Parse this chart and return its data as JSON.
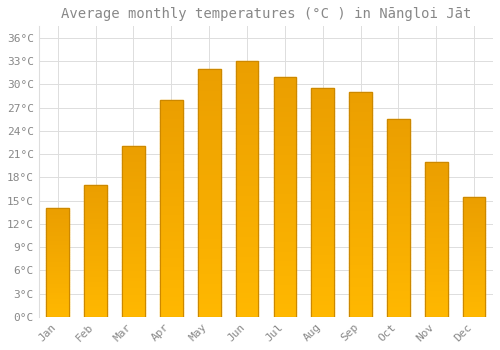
{
  "title": "Average monthly temperatures (°C ) in Nāngloi Jāt",
  "months": [
    "Jan",
    "Feb",
    "Mar",
    "Apr",
    "May",
    "Jun",
    "Jul",
    "Aug",
    "Sep",
    "Oct",
    "Nov",
    "Dec"
  ],
  "values": [
    14,
    17,
    22,
    28,
    32,
    33,
    31,
    29.5,
    29,
    25.5,
    20,
    15.5
  ],
  "bar_color_top": "#FFB800",
  "bar_color_bottom": "#FFA000",
  "bar_edge_color": "#CC8800",
  "background_color": "#FFFFFF",
  "grid_color": "#DDDDDD",
  "text_color": "#888888",
  "yticks": [
    0,
    3,
    6,
    9,
    12,
    15,
    18,
    21,
    24,
    27,
    30,
    33,
    36
  ],
  "ylim": [
    0,
    37.5
  ],
  "title_fontsize": 10,
  "tick_fontsize": 8,
  "font_family": "monospace",
  "bar_width": 0.6
}
